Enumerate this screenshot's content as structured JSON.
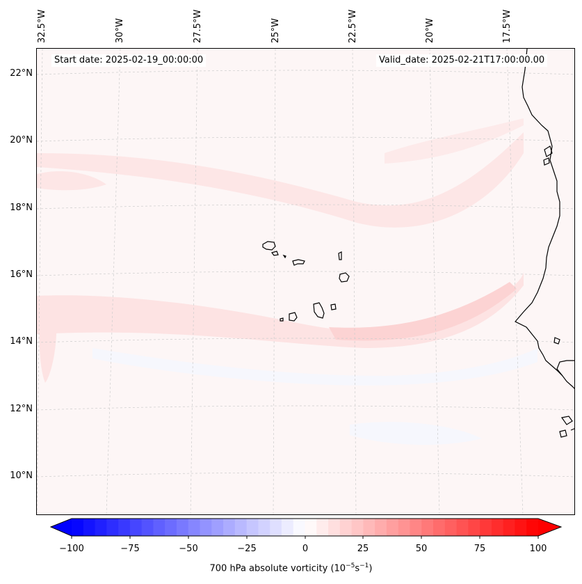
{
  "map": {
    "start_date": "Start date: 2025-02-19_00:00:00",
    "valid_date": "Valid_date: 2025-02-21T17:00:00.00",
    "lon_labels": [
      "32.5°W",
      "30°W",
      "27.5°W",
      "25°W",
      "22.5°W",
      "20°W",
      "17.5°W"
    ],
    "lat_labels": [
      "22°N",
      "20°N",
      "18°N",
      "16°N",
      "14°N",
      "12°N",
      "10°N"
    ],
    "land_outline_color": "#000000",
    "grid_color": "#cccccc"
  },
  "colorbar": {
    "label": "700 hPa absolute vorticity (10",
    "label_exp1": "−5",
    "label_mid": "s",
    "label_exp2": "−1",
    "label_end": ")",
    "ticks": [
      "−100",
      "−75",
      "−50",
      "−25",
      "0",
      "25",
      "50",
      "75",
      "100"
    ],
    "min": -100,
    "max": 100,
    "colormap": "bwr",
    "extend": "both"
  }
}
